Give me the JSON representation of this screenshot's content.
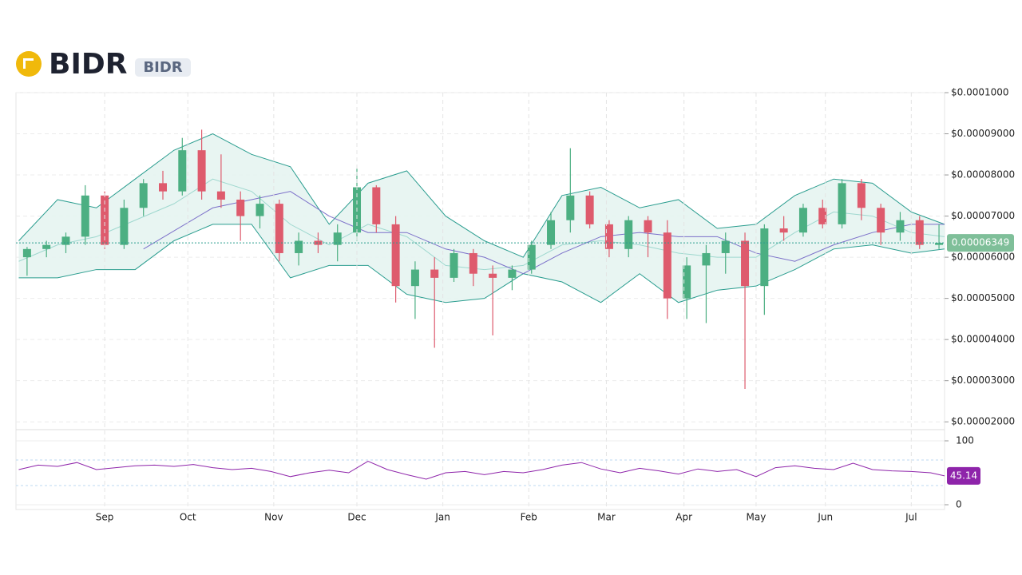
{
  "header": {
    "title": "BIDR",
    "symbol": "BIDR"
  },
  "chart_data": [
    {
      "type": "candlestick",
      "x": [
        3,
        10,
        17,
        24,
        31,
        38,
        45,
        52,
        59,
        66,
        73,
        80,
        87,
        94,
        101,
        108,
        115,
        122,
        129,
        136,
        143,
        150,
        157,
        164,
        171,
        178,
        185,
        192,
        199,
        206,
        213,
        220,
        227,
        234,
        241,
        248,
        255,
        262,
        269,
        276,
        283,
        290,
        297,
        304,
        311,
        318,
        325,
        332
      ],
      "open": [
        6e-05,
        6.2e-05,
        6.3e-05,
        6.5e-05,
        7.5e-05,
        6.3e-05,
        7.2e-05,
        7.8e-05,
        7.6e-05,
        8.6e-05,
        7.6e-05,
        7.4e-05,
        7e-05,
        7.3e-05,
        6.1e-05,
        6.4e-05,
        6.3e-05,
        6.6e-05,
        7.7e-05,
        6.8e-05,
        5.3e-05,
        5.7e-05,
        5.5e-05,
        6.1e-05,
        5.6e-05,
        5.5e-05,
        5.7e-05,
        6.3e-05,
        6.9e-05,
        7.5e-05,
        6.8e-05,
        6.2e-05,
        6.9e-05,
        6.6e-05,
        5e-05,
        5.8e-05,
        6.1e-05,
        6.4e-05,
        5.3e-05,
        6.7e-05,
        6.6e-05,
        7.2e-05,
        6.8e-05,
        7.8e-05,
        7.2e-05,
        6.6e-05,
        6.9e-05,
        6.3e-05
      ],
      "high": [
        6.25e-05,
        6.4e-05,
        6.6e-05,
        7.75e-05,
        7.6e-05,
        7.4e-05,
        7.9e-05,
        8.1e-05,
        8.9e-05,
        9.1e-05,
        8.5e-05,
        7.6e-05,
        7.5e-05,
        7.4e-05,
        6.6e-05,
        6.6e-05,
        6.8e-05,
        8.15e-05,
        7.75e-05,
        7e-05,
        5.9e-05,
        6e-05,
        6.2e-05,
        6.2e-05,
        5.8e-05,
        5.8e-05,
        6.4e-05,
        7.1e-05,
        8.65e-05,
        7.6e-05,
        6.9e-05,
        7e-05,
        7e-05,
        6.9e-05,
        6e-05,
        6.3e-05,
        6.6e-05,
        6.6e-05,
        6.8e-05,
        7e-05,
        7.3e-05,
        7.4e-05,
        7.9e-05,
        7.9e-05,
        7.3e-05,
        7.1e-05,
        7e-05,
        6.8e-05
      ],
      "low": [
        5.55e-05,
        6e-05,
        6.1e-05,
        6.3e-05,
        6.2e-05,
        6.2e-05,
        7e-05,
        7.4e-05,
        7.5e-05,
        7.4e-05,
        7.2e-05,
        6.4e-05,
        6.7e-05,
        5.9e-05,
        5.8e-05,
        6.1e-05,
        5.9e-05,
        6.4e-05,
        6.6e-05,
        4.9e-05,
        4.5e-05,
        3.8e-05,
        5.4e-05,
        5.3e-05,
        4.1e-05,
        5.2e-05,
        5.6e-05,
        6.2e-05,
        6.6e-05,
        6.7e-05,
        6e-05,
        6e-05,
        6e-05,
        4.5e-05,
        4.5e-05,
        4.4e-05,
        5.6e-05,
        2.8e-05,
        4.6e-05,
        6.4e-05,
        6.5e-05,
        6.7e-05,
        6.7e-05,
        6.9e-05,
        6.3e-05,
        6.4e-05,
        6.2e-05,
        6.2e-05
      ],
      "close": [
        6.2e-05,
        6.3e-05,
        6.5e-05,
        7.5e-05,
        6.3e-05,
        7.2e-05,
        7.8e-05,
        7.6e-05,
        8.6e-05,
        7.6e-05,
        7.4e-05,
        7e-05,
        7.3e-05,
        6.1e-05,
        6.4e-05,
        6.3e-05,
        6.6e-05,
        7.7e-05,
        6.8e-05,
        5.3e-05,
        5.7e-05,
        5.5e-05,
        6.1e-05,
        5.6e-05,
        5.5e-05,
        5.7e-05,
        6.3e-05,
        6.9e-05,
        7.5e-05,
        6.8e-05,
        6.2e-05,
        6.9e-05,
        6.6e-05,
        5e-05,
        5.8e-05,
        6.1e-05,
        6.4e-05,
        5.3e-05,
        6.7e-05,
        6.6e-05,
        7.2e-05,
        6.8e-05,
        7.8e-05,
        7.2e-05,
        6.6e-05,
        6.9e-05,
        6.3e-05,
        6.349e-05
      ],
      "up_color": "#4caf82",
      "down_color": "#de5b6d",
      "last_label": "0.00006349",
      "xlim": [
        -1,
        334
      ],
      "xticks": [
        {
          "value": 31,
          "label": "Sep"
        },
        {
          "value": 61,
          "label": "Oct"
        },
        {
          "value": 92,
          "label": "Nov"
        },
        {
          "value": 122,
          "label": "Dec"
        },
        {
          "value": 153,
          "label": "Jan"
        },
        {
          "value": 184,
          "label": "Feb"
        },
        {
          "value": 212,
          "label": "Mar"
        },
        {
          "value": 240,
          "label": "Apr"
        },
        {
          "value": 266,
          "label": "May"
        },
        {
          "value": 291,
          "label": "Jun"
        },
        {
          "value": 322,
          "label": "Jul"
        }
      ],
      "ylim": [
        1.81e-05,
        0.0001
      ],
      "yticks": [
        {
          "value": 0.0001,
          "label": "$0.0001000"
        },
        {
          "value": 9e-05,
          "label": "$0.00009000"
        },
        {
          "value": 8e-05,
          "label": "$0.00008000"
        },
        {
          "value": 7e-05,
          "label": "$0.00007000"
        },
        {
          "value": 6e-05,
          "label": "$0.00006000"
        },
        {
          "value": 5e-05,
          "label": "$0.00005000"
        },
        {
          "value": 4e-05,
          "label": "$0.00004000"
        },
        {
          "value": 3e-05,
          "label": "$0.00003000"
        },
        {
          "value": 2e-05,
          "label": "$0.00002000"
        }
      ],
      "bollinger": {
        "color": "#2a9d8f",
        "mid_color": "#9fd8cf",
        "fill": "#e6f4f1",
        "x": [
          0,
          14,
          28,
          42,
          56,
          70,
          84,
          98,
          112,
          126,
          140,
          154,
          168,
          182,
          196,
          210,
          224,
          238,
          252,
          266,
          280,
          294,
          308,
          322,
          334
        ],
        "upper": [
          6.4e-05,
          7.4e-05,
          7.2e-05,
          7.9e-05,
          8.6e-05,
          9e-05,
          8.5e-05,
          8.2e-05,
          6.8e-05,
          7.8e-05,
          8.1e-05,
          7e-05,
          6.4e-05,
          6e-05,
          7.5e-05,
          7.7e-05,
          7.2e-05,
          7.4e-05,
          6.7e-05,
          6.8e-05,
          7.5e-05,
          7.9e-05,
          7.8e-05,
          7.1e-05,
          6.8e-05
        ],
        "middle": [
          5.9e-05,
          6.3e-05,
          6.5e-05,
          6.9e-05,
          7.3e-05,
          7.9e-05,
          7.6e-05,
          6.8e-05,
          6.3e-05,
          6.8e-05,
          6.5e-05,
          5.8e-05,
          5.7e-05,
          5.8e-05,
          6.3e-05,
          6.4e-05,
          6.3e-05,
          6.1e-05,
          6e-05,
          6e-05,
          6.6e-05,
          7.1e-05,
          7e-05,
          6.6e-05,
          6.5e-05
        ],
        "lower": [
          5.5e-05,
          5.5e-05,
          5.7e-05,
          5.7e-05,
          6.4e-05,
          6.8e-05,
          6.8e-05,
          5.5e-05,
          5.8e-05,
          5.8e-05,
          5.1e-05,
          4.9e-05,
          5e-05,
          5.6e-05,
          5.4e-05,
          4.9e-05,
          5.6e-05,
          4.9e-05,
          5.2e-05,
          5.3e-05,
          5.7e-05,
          6.2e-05,
          6.3e-05,
          6.1e-05,
          6.2e-05
        ]
      },
      "ma": {
        "color": "#7b6fc9",
        "x": [
          45,
          70,
          84,
          98,
          112,
          126,
          140,
          154,
          168,
          182,
          196,
          210,
          224,
          238,
          252,
          266,
          280,
          294,
          308,
          322,
          334
        ],
        "values": [
          6.2e-05,
          7.2e-05,
          7.4e-05,
          7.6e-05,
          7e-05,
          6.6e-05,
          6.6e-05,
          6.2e-05,
          6e-05,
          5.6e-05,
          6.1e-05,
          6.5e-05,
          6.6e-05,
          6.5e-05,
          6.5e-05,
          6.1e-05,
          5.9e-05,
          6.3e-05,
          6.6e-05,
          6.8e-05,
          6.8e-05
        ]
      }
    },
    {
      "type": "line",
      "color": "#8e24aa",
      "last_label": "45.14",
      "x": [
        0,
        7,
        14,
        21,
        28,
        35,
        42,
        49,
        56,
        63,
        70,
        77,
        84,
        91,
        98,
        105,
        112,
        119,
        126,
        133,
        140,
        147,
        154,
        161,
        168,
        175,
        182,
        189,
        196,
        203,
        210,
        217,
        224,
        231,
        238,
        245,
        252,
        259,
        266,
        273,
        280,
        287,
        294,
        301,
        308,
        315,
        322,
        329,
        334
      ],
      "values": [
        55,
        62,
        60,
        66,
        55,
        58,
        61,
        62,
        60,
        63,
        58,
        55,
        57,
        52,
        44,
        50,
        54,
        50,
        68,
        55,
        47,
        40,
        50,
        52,
        47,
        52,
        50,
        55,
        62,
        66,
        56,
        50,
        57,
        53,
        48,
        56,
        52,
        55,
        44,
        58,
        61,
        57,
        55,
        65,
        55,
        53,
        52,
        50,
        45.14
      ],
      "xlim": [
        -1,
        334
      ],
      "ylim": [
        -7.5,
        117.5
      ],
      "yticks": [
        100,
        0
      ],
      "guides": [
        70,
        30
      ]
    }
  ]
}
